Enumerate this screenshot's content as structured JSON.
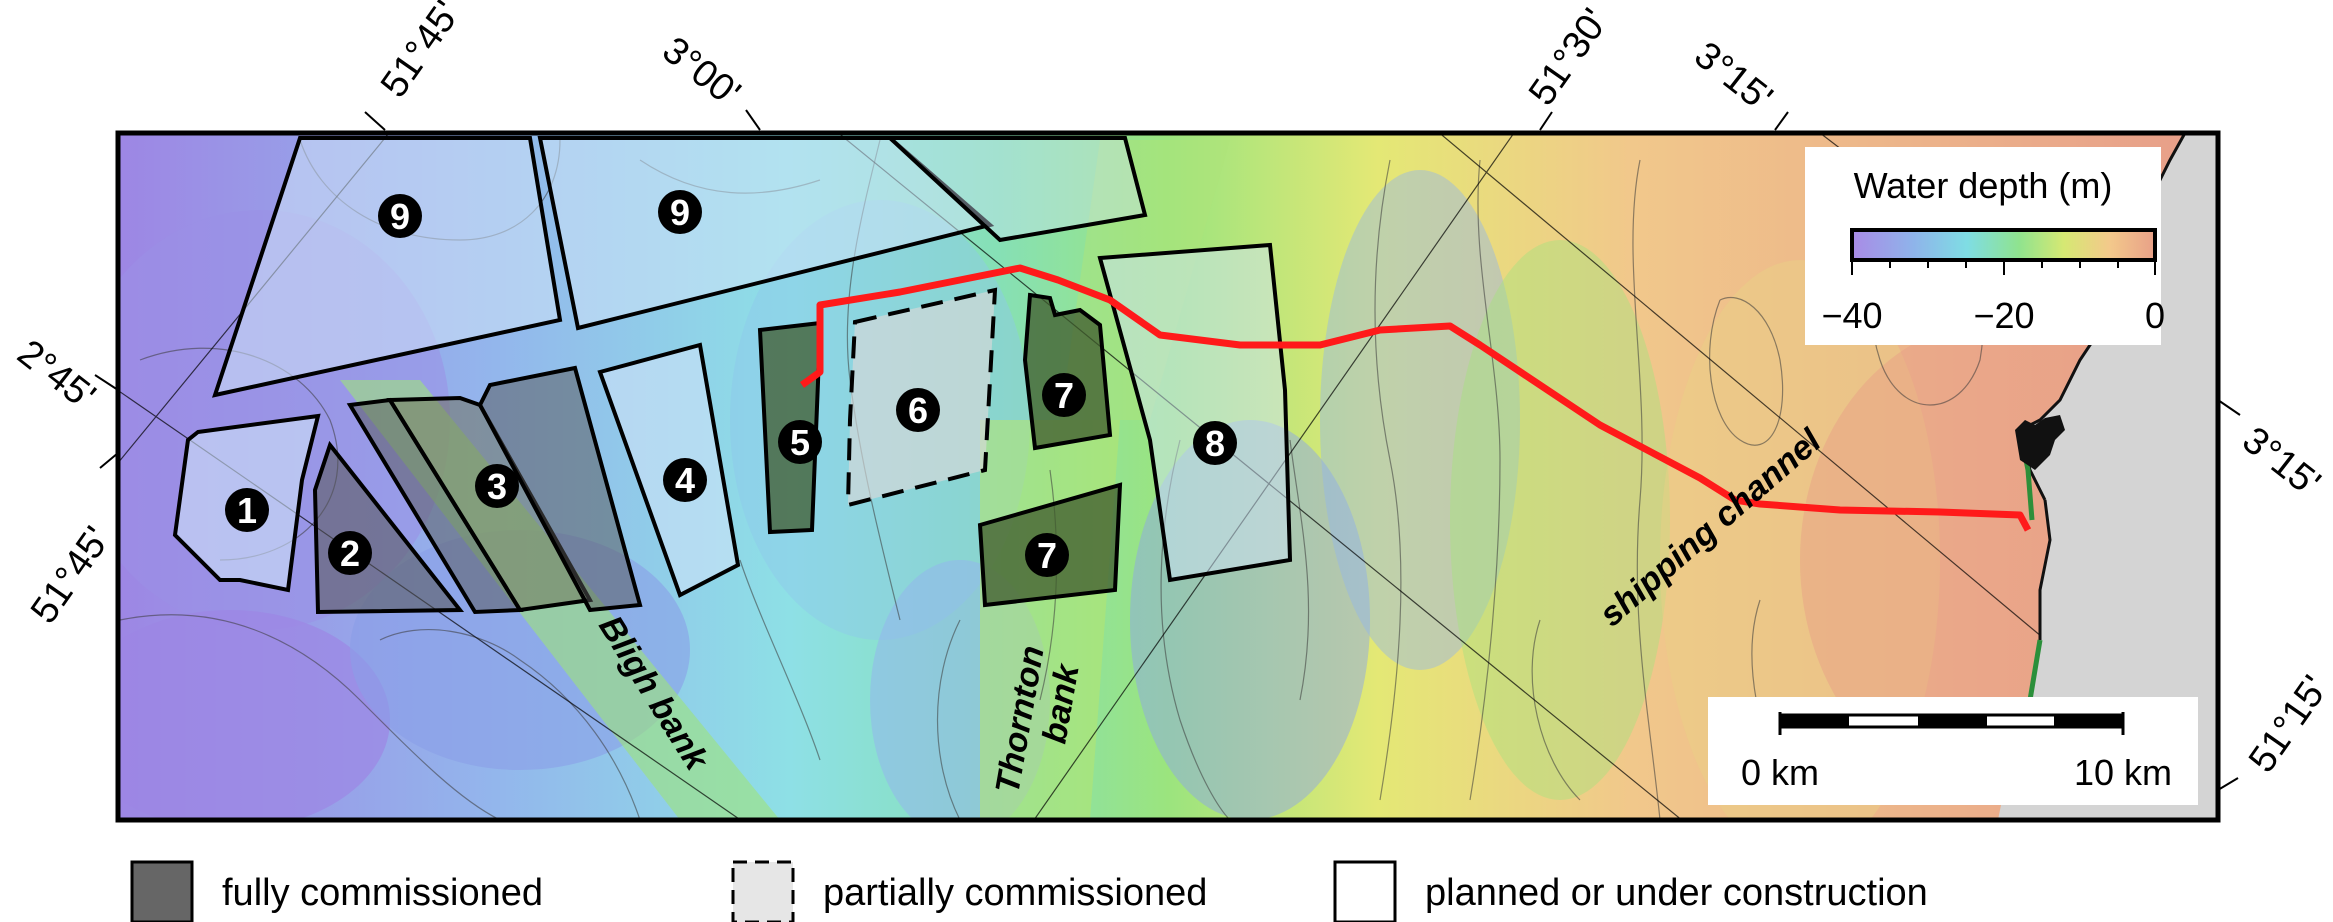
{
  "zones": {
    "z1": "1",
    "z2": "2",
    "z3": "3",
    "z4": "4",
    "z5": "5",
    "z6": "6",
    "z7a": "7",
    "z7b": "7",
    "z8": "8",
    "z9a": "9",
    "z9b": "9"
  },
  "banks": {
    "bligh": "Bligh bank",
    "thornton_line1": "Thornton",
    "thornton_line2": "bank",
    "shipping": "shipping channel"
  },
  "graticule": {
    "lat_top_left": "51°45'",
    "lat_left": "51°45'",
    "lat_top_right": "51°30'",
    "lat_bottom_right": "51°15'",
    "lon_left": "2°45'",
    "lon_top_mid": "3°00'",
    "lon_top_right": "3°15'",
    "lon_right": "3°15'"
  },
  "colorbar": {
    "title": "Water depth (m)",
    "ticks": [
      "−40",
      "−20",
      "0"
    ],
    "min": -40,
    "max": 0,
    "colors": [
      "#a98be6",
      "#8fb3ea",
      "#7fdde4",
      "#8fe38f",
      "#d6e873",
      "#f3c98b",
      "#e8a088"
    ]
  },
  "scalebar": {
    "left_label": "0 km",
    "right_label": "10 km",
    "length_km": 10
  },
  "legend": {
    "fully": "fully commissioned",
    "partially": "partially commissioned",
    "planned": "planned or under construction"
  },
  "colors": {
    "cable": "#ff1a1a",
    "land": "#d4d4d4",
    "fully_fill": "#555555",
    "partial_fill": "#d8d8d8"
  }
}
